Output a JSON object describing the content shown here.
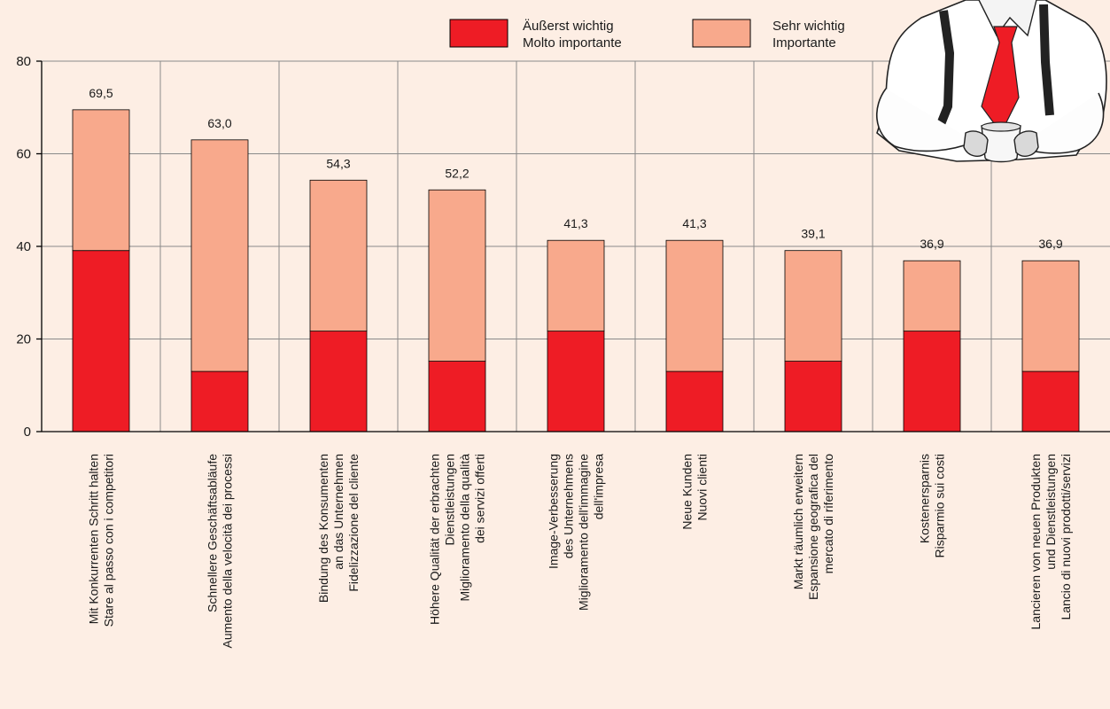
{
  "colors": {
    "background": "#fdeee4",
    "extremely_important": "#ee1c25",
    "very_important": "#f8a98c",
    "grid": "#8a8a8a",
    "axis": "#000000"
  },
  "legend": [
    {
      "line1": "Äußerst wichtig",
      "line2": "Molto importante",
      "color": "#ee1c25"
    },
    {
      "line1": "Sehr wichtig",
      "line2": "Importante",
      "color": "#f8a98c"
    }
  ],
  "illustration": "man-with-red-tie-holding-cup",
  "chart_data": {
    "type": "bar",
    "stacked": true,
    "ylim": [
      0,
      80
    ],
    "yticks": [
      0,
      20,
      40,
      60,
      80
    ],
    "yticklabels": [
      "0",
      "20",
      "40",
      "60",
      "80"
    ],
    "grid": true,
    "legend_position": "top-right",
    "categories": [
      [
        "Mit Konkurrenten Schritt halten",
        "Stare al passo con i competitori"
      ],
      [
        "Schnellere Geschäftsabläufe",
        "Aumento della velocità dei processi"
      ],
      [
        "Bindung des Konsumenten",
        "an das Unternehmen",
        "Fidelizzazione del cliente"
      ],
      [
        "Höhere Qualität der erbrachten",
        "Dienstleistungen",
        "Miglioramento della qualità",
        "dei servizi offerti"
      ],
      [
        "Image-Verbesserung",
        "des Unternehmens",
        "Miglioramento dell'immagine",
        "dell'impresa"
      ],
      [
        "Neue Kunden",
        "Nuovi clienti"
      ],
      [
        "Markt räumlich erweitern",
        "Espansione geografica del",
        "mercato di riferimento"
      ],
      [
        "Kostenersparnis",
        "Risparmio sui costi"
      ],
      [
        "Lancieren von neuen Produkten",
        "und Dienstleistungen",
        "Lancio di nuovi prodotti/servizi"
      ]
    ],
    "series": [
      {
        "name": "Äußerst wichtig / Molto importante",
        "values": [
          39.1,
          13.0,
          21.7,
          15.2,
          21.7,
          13.0,
          15.2,
          21.7,
          13.0
        ]
      },
      {
        "name": "Sehr wichtig / Importante",
        "values": [
          30.4,
          50.0,
          32.6,
          37.0,
          19.6,
          28.3,
          23.9,
          15.2,
          23.9
        ]
      }
    ],
    "totals": [
      "69,5",
      "63,0",
      "54,3",
      "52,2",
      "41,3",
      "41,3",
      "39,1",
      "36,9",
      "36,9"
    ]
  }
}
